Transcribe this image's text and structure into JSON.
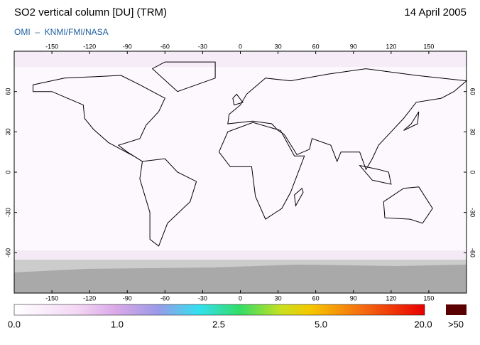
{
  "header": {
    "title": "SO2 vertical column [DU] (TRM)",
    "date": "14 April 2005",
    "credit": "OMI  –  KNMI/FMI/NASA"
  },
  "map": {
    "lon_ticks": [
      -150,
      -120,
      -90,
      -60,
      -30,
      0,
      30,
      60,
      90,
      120,
      150
    ],
    "lat_ticks": [
      60,
      30,
      0,
      -30,
      -60
    ]
  },
  "colorbar": {
    "labels": [
      "0.0",
      "1.0",
      "2.5",
      "5.0",
      "20.0"
    ],
    "overflow": ">50"
  }
}
